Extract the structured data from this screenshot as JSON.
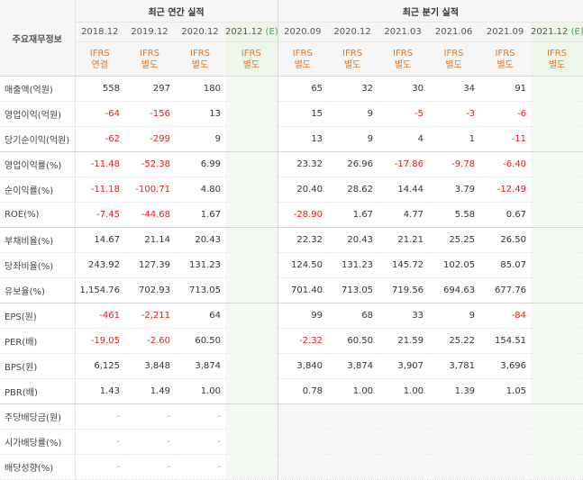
{
  "header": {
    "label": "주요재무정보",
    "annual_group": "최근 연간 실적",
    "quarter_group": "최근 분기 실적",
    "annual_periods": [
      {
        "period": "2018.12",
        "basis1": "IFRS",
        "basis2": "연결"
      },
      {
        "period": "2019.12",
        "basis1": "IFRS",
        "basis2": "별도"
      },
      {
        "period": "2020.12",
        "basis1": "IFRS",
        "basis2": "별도"
      },
      {
        "period": "2021.12",
        "mark": "(E)",
        "basis1": "IFRS",
        "basis2": "별도"
      }
    ],
    "quarter_periods": [
      {
        "period": "2020.09",
        "basis1": "IFRS",
        "basis2": "별도"
      },
      {
        "period": "2020.12",
        "basis1": "IFRS",
        "basis2": "별도"
      },
      {
        "period": "2021.03",
        "basis1": "IFRS",
        "basis2": "별도"
      },
      {
        "period": "2021.06",
        "basis1": "IFRS",
        "basis2": "별도"
      },
      {
        "period": "2021.09",
        "basis1": "IFRS",
        "basis2": "별도"
      },
      {
        "period": "2021.12",
        "mark": "(E)",
        "basis1": "IFRS",
        "basis2": "별도"
      }
    ]
  },
  "rows": [
    {
      "label": "매출액(억원)",
      "values": [
        "558",
        "297",
        "180",
        "",
        "65",
        "32",
        "30",
        "34",
        "91",
        ""
      ]
    },
    {
      "label": "영업이익(억원)",
      "values": [
        "-64",
        "-156",
        "13",
        "",
        "15",
        "9",
        "-5",
        "-3",
        "-6",
        ""
      ]
    },
    {
      "label": "당기순이익(억원)",
      "values": [
        "-62",
        "-299",
        "9",
        "",
        "13",
        "9",
        "4",
        "1",
        "-11",
        ""
      ]
    },
    {
      "label": "영업이익률(%)",
      "values": [
        "-11.48",
        "-52.38",
        "6.99",
        "",
        "23.32",
        "26.96",
        "-17.86",
        "-9.78",
        "-6.40",
        ""
      ]
    },
    {
      "label": "순이익률(%)",
      "values": [
        "-11.18",
        "-100.71",
        "4.80",
        "",
        "20.40",
        "28.62",
        "14.44",
        "3.79",
        "-12.49",
        ""
      ]
    },
    {
      "label": "ROE(%)",
      "values": [
        "-7.45",
        "-44.68",
        "1.67",
        "",
        "-28.90",
        "1.67",
        "4.77",
        "5.58",
        "0.67",
        ""
      ]
    },
    {
      "label": "부채비율(%)",
      "values": [
        "14.67",
        "21.14",
        "20.43",
        "",
        "22.32",
        "20.43",
        "21.21",
        "25.25",
        "26.50",
        ""
      ]
    },
    {
      "label": "당좌비율(%)",
      "values": [
        "243.92",
        "127.39",
        "131.23",
        "",
        "124.50",
        "131.23",
        "145.72",
        "102.05",
        "85.07",
        ""
      ]
    },
    {
      "label": "유보율(%)",
      "values": [
        "1,154.76",
        "702.93",
        "713.05",
        "",
        "701.40",
        "713.05",
        "719.56",
        "694.63",
        "677.76",
        ""
      ]
    },
    {
      "label": "EPS(원)",
      "values": [
        "-461",
        "-2,211",
        "64",
        "",
        "99",
        "68",
        "33",
        "9",
        "-84",
        ""
      ]
    },
    {
      "label": "PER(배)",
      "values": [
        "-19.05",
        "-2.60",
        "60.50",
        "",
        "-2.32",
        "60.50",
        "21.59",
        "25.22",
        "154.51",
        ""
      ]
    },
    {
      "label": "BPS(원)",
      "values": [
        "6,125",
        "3,848",
        "3,874",
        "",
        "3,840",
        "3,874",
        "3,907",
        "3,781",
        "3,696",
        ""
      ]
    },
    {
      "label": "PBR(배)",
      "values": [
        "1.43",
        "1.49",
        "1.00",
        "",
        "0.78",
        "1.00",
        "1.00",
        "1.39",
        "1.05",
        ""
      ]
    },
    {
      "label": "주당배당금(원)",
      "values": [
        "-",
        "-",
        "-",
        "",
        "",
        "",
        "",
        "",
        "",
        ""
      ]
    },
    {
      "label": "시가배당률(%)",
      "values": [
        "-",
        "-",
        "-",
        "",
        "",
        "",
        "",
        "",
        "",
        ""
      ]
    },
    {
      "label": "배당성향(%)",
      "values": [
        "-",
        "-",
        "-",
        "",
        "",
        "",
        "",
        "",
        "",
        ""
      ]
    }
  ],
  "colors": {
    "negative": "#e02020",
    "ifrs": "#e8751a",
    "estimate_mark": "#4aa24a",
    "estimate_bg": "#f3f8f1"
  }
}
